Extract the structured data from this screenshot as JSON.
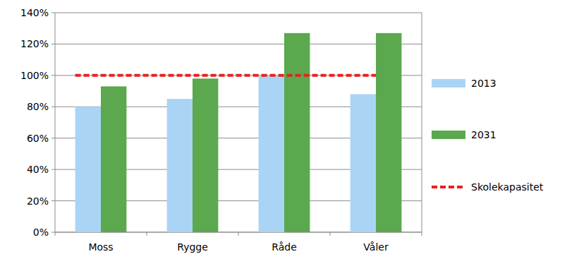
{
  "chart_data": {
    "type": "bar",
    "categories": [
      "Moss",
      "Rygge",
      "Råde",
      "Våler"
    ],
    "series": [
      {
        "name": "2013",
        "color": "#aad4f6",
        "values": [
          80,
          85,
          100,
          88
        ]
      },
      {
        "name": "2031",
        "color": "#5ba84f",
        "values": [
          93,
          98,
          127,
          127
        ]
      },
      {
        "name": "Skolekapasitet",
        "type": "line",
        "color": "#e8201f",
        "line_style": "dashed",
        "values": [
          100,
          100,
          100,
          100
        ]
      }
    ],
    "ylim": [
      0,
      140
    ],
    "yticks": [
      {
        "value": 0,
        "label": "0%"
      },
      {
        "value": 20,
        "label": "20%"
      },
      {
        "value": 40,
        "label": "40%"
      },
      {
        "value": 60,
        "label": "60%"
      },
      {
        "value": 80,
        "label": "80%"
      },
      {
        "value": 100,
        "label": "100%"
      },
      {
        "value": 120,
        "label": "120%"
      },
      {
        "value": 140,
        "label": "140%"
      }
    ],
    "grid": true,
    "legend": "right"
  }
}
